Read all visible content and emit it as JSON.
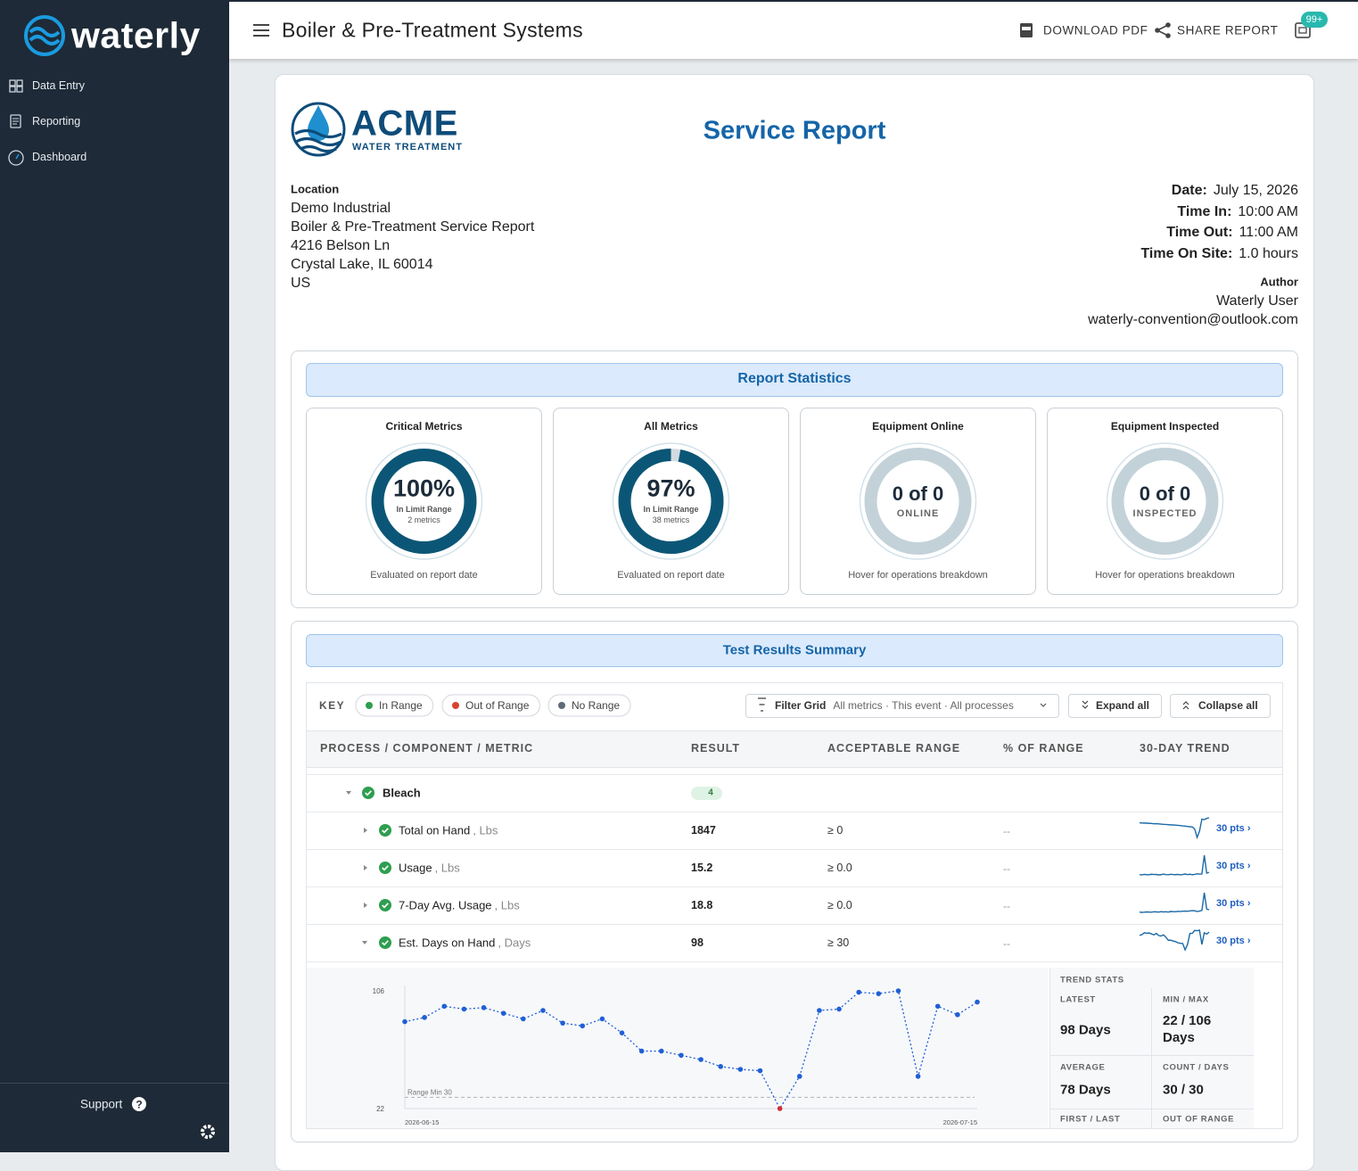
{
  "sidebar": {
    "brand": "waterly",
    "nav": [
      "Data Entry",
      "Reporting",
      "Dashboard"
    ],
    "support": "Support"
  },
  "topbar": {
    "title": "Boiler & Pre-Treatment Systems",
    "actions": [
      "DOWNLOAD PDF",
      "SHARE REPORT"
    ],
    "badge": "99+"
  },
  "report": {
    "logo": {
      "name": "ACME",
      "tagline": "WATER TREATMENT"
    },
    "title": "Service Report",
    "location": {
      "label": "Location",
      "lines": [
        "Demo Industrial",
        "Boiler & Pre-Treatment Service Report",
        "4216 Belson Ln",
        "Crystal Lake, IL 60014",
        "US"
      ]
    },
    "details": [
      {
        "label": "Date:",
        "value": "July 15, 2026"
      },
      {
        "label": "Time In:",
        "value": "10:00 AM"
      },
      {
        "label": "Time Out:",
        "value": "11:00 AM"
      },
      {
        "label": "Time On Site:",
        "value": "1.0 hours"
      }
    ],
    "author": {
      "label": "Author",
      "name": "Waterly User",
      "email": "waterly-convention@outlook.com"
    }
  },
  "statistics": {
    "title": "Report Statistics",
    "cards": [
      {
        "title": "Critical Metrics",
        "percent": 100,
        "percent_label": "100%",
        "caption": "In Limit Range",
        "count": "2 metrics",
        "footer": "Evaluated on report date"
      },
      {
        "title": "All Metrics",
        "percent": 97,
        "percent_label": "97%",
        "caption": "In Limit Range",
        "count": "38 metrics",
        "footer": "Evaluated on report date"
      },
      {
        "title": "Equipment Online",
        "summary": "0 of 0",
        "caption": "ONLINE",
        "footer": "Hover for operations breakdown"
      },
      {
        "title": "Equipment Inspected",
        "summary": "0 of 0",
        "caption": "INSPECTED",
        "footer": "Hover for operations breakdown"
      }
    ]
  },
  "results": {
    "title": "Test Results Summary",
    "key_label": "KEY",
    "legend": [
      {
        "label": "In Range",
        "color": "#2e9e4f"
      },
      {
        "label": "Out of Range",
        "color": "#d9432f"
      },
      {
        "label": "No Range",
        "color": "#5f6b7a"
      }
    ],
    "filter": {
      "label": "Filter Grid",
      "value": "All metrics · This event · All processes"
    },
    "buttons": [
      "Expand all",
      "Collapse all"
    ],
    "columns": [
      "PROCESS / COMPONENT / METRIC",
      "RESULT",
      "ACCEPTABLE RANGE",
      "% OF RANGE",
      "30-DAY TREND"
    ],
    "group": {
      "name": "Bleach",
      "count": 4
    },
    "rows": [
      {
        "name": "Total on Hand",
        "unit": ", Lbs",
        "result": 1847,
        "range": "≥ 0",
        "percent": "--",
        "points": "30 pts ›",
        "trend": [
          1800,
          1798,
          1797,
          1796,
          1795,
          1793,
          1790,
          1791,
          1789,
          1787,
          1785,
          1784,
          1782,
          1780,
          1779,
          1777,
          1775,
          1773,
          1770,
          1768,
          1765,
          1762,
          1760,
          1740,
          1660,
          1720,
          1835,
          1830,
          1842,
          1847
        ]
      },
      {
        "name": "Usage",
        "unit": ", Lbs",
        "result": 15.2,
        "range": "≥ 0.0",
        "percent": "--",
        "points": "30 pts ›",
        "trend": [
          12.1,
          11.8,
          12.4,
          12.0,
          11.9,
          12.6,
          12.2,
          12.3,
          11.7,
          12.0,
          12.8,
          12.1,
          11.9,
          12.5,
          12.2,
          12.0,
          12.4,
          11.8,
          12.3,
          12.9,
          12.1,
          12.6,
          12.0,
          12.4,
          13.1,
          12.8,
          13.0,
          38.5,
          14.2,
          15.2
        ]
      },
      {
        "name": "7-Day Avg. Usage",
        "unit": ", Lbs",
        "result": 18.8,
        "range": "≥ 0.0",
        "percent": "--",
        "points": "30 pts ›",
        "trend": [
          17.2,
          17.0,
          17.1,
          17.3,
          17.2,
          17.1,
          17.4,
          17.3,
          17.2,
          17.5,
          17.3,
          17.4,
          17.2,
          17.6,
          17.5,
          17.4,
          17.7,
          17.6,
          17.8,
          17.9,
          17.7,
          18.0,
          18.2,
          18.1,
          17.6,
          17.9,
          18.3,
          30.4,
          19.2,
          18.8
        ]
      },
      {
        "name": "Est. Days on Hand",
        "unit": ", Days",
        "result": 98,
        "range": "≥ 30",
        "percent": "--",
        "points": "30 pts ›",
        "trend": [
          84,
          87,
          95,
          93,
          94,
          90,
          86,
          92,
          83,
          81,
          86,
          76,
          63,
          63,
          60,
          57,
          52,
          50,
          49,
          22,
          45,
          92,
          93,
          105,
          104,
          106,
          45,
          95,
          89,
          98
        ]
      }
    ]
  },
  "chart_data": {
    "type": "line",
    "categories": [
      "2026-06-15",
      null,
      null,
      null,
      null,
      null,
      null,
      null,
      null,
      null,
      null,
      null,
      null,
      null,
      null,
      null,
      null,
      null,
      null,
      null,
      null,
      null,
      null,
      null,
      null,
      null,
      null,
      null,
      null,
      "2026-07-15"
    ],
    "values": [
      84,
      87,
      95,
      93,
      94,
      90,
      86,
      92,
      83,
      81,
      86,
      76,
      63,
      63,
      60,
      57,
      52,
      50,
      49,
      22,
      45,
      92,
      93,
      105,
      104,
      106,
      45,
      95,
      89,
      98
    ],
    "color": "#1f5fd6",
    "out_of_range_color": "#d32f2f",
    "ylim": [
      22,
      106
    ],
    "yticks": [
      22,
      106
    ],
    "range_min": 30,
    "range_min_label": "Range Min 30"
  },
  "trend_stats": {
    "title": "TREND STATS",
    "items": [
      {
        "label": "LATEST",
        "value": "98 Days"
      },
      {
        "label": "MIN / MAX",
        "value": "22 / 106 Days"
      },
      {
        "label": "AVERAGE",
        "value": "78 Days"
      },
      {
        "label": "COUNT / DAYS",
        "value": "30 / 30"
      },
      {
        "label": "FIRST / LAST"
      },
      {
        "label": "OUT OF RANGE"
      }
    ]
  }
}
